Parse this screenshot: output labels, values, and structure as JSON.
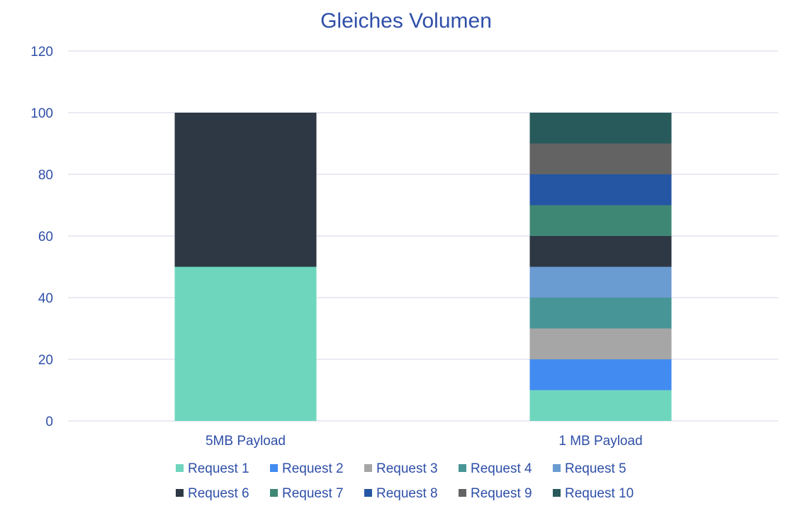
{
  "chart_data": {
    "type": "bar",
    "stacked": true,
    "title": "Gleiches Volumen",
    "xlabel": "",
    "ylabel": "",
    "ylim": [
      0,
      120
    ],
    "yticks": [
      0,
      20,
      40,
      60,
      80,
      100,
      120
    ],
    "grid": true,
    "legend_position": "bottom",
    "categories": [
      "5MB Payload",
      "1 MB Payload"
    ],
    "series": [
      {
        "name": "Request 1",
        "color": "#6FD6BE",
        "values": [
          50,
          10
        ]
      },
      {
        "name": "Request 2",
        "color": "#428BF0",
        "values": [
          0,
          10
        ]
      },
      {
        "name": "Request 3",
        "color": "#A6A6A6",
        "values": [
          0,
          10
        ]
      },
      {
        "name": "Request 4",
        "color": "#479597",
        "values": [
          0,
          10
        ]
      },
      {
        "name": "Request 5",
        "color": "#6A9BD1",
        "values": [
          0,
          10
        ]
      },
      {
        "name": "Request 6",
        "color": "#2E3844",
        "values": [
          50,
          10
        ]
      },
      {
        "name": "Request 7",
        "color": "#3F8775",
        "values": [
          0,
          10
        ]
      },
      {
        "name": "Request 8",
        "color": "#2456A4",
        "values": [
          0,
          10
        ]
      },
      {
        "name": "Request 9",
        "color": "#636363",
        "values": [
          0,
          10
        ]
      },
      {
        "name": "Request 10",
        "color": "#285A5B",
        "values": [
          0,
          10
        ]
      }
    ]
  }
}
